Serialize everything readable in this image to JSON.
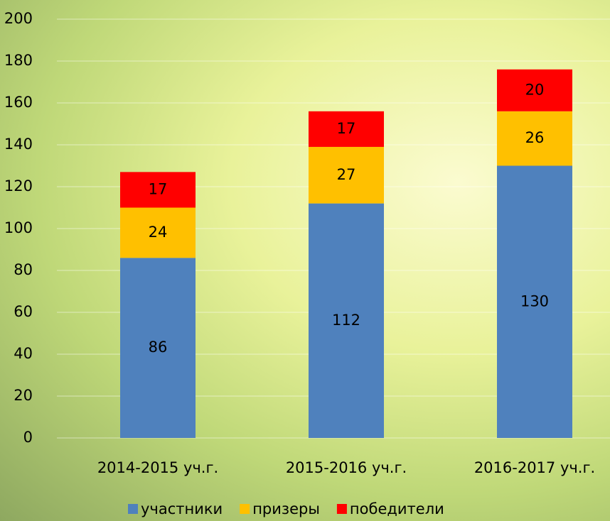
{
  "chart_data": {
    "type": "stacked_bar",
    "categories": [
      "2014-2015 уч.г.",
      "2015-2016 уч.г.",
      "2016-2017 уч.г."
    ],
    "series": [
      {
        "name": "участники",
        "color": "#4f81bd",
        "values": [
          86,
          112,
          130
        ]
      },
      {
        "name": "призеры",
        "color": "#ffc000",
        "values": [
          24,
          27,
          26
        ]
      },
      {
        "name": "победители",
        "color": "#ff0000",
        "values": [
          17,
          17,
          20
        ]
      }
    ],
    "ylim": [
      0,
      200
    ],
    "yticks": [
      0,
      20,
      40,
      60,
      80,
      100,
      120,
      140,
      160,
      180,
      200
    ],
    "grid": true
  }
}
